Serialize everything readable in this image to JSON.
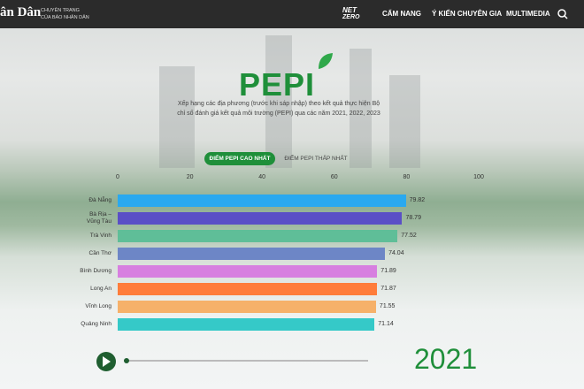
{
  "header": {
    "logo": "ân Dân",
    "tagline": [
      "CHUYÊN TRANG",
      "CỦA BÁO NHÂN DÂN"
    ],
    "netzero": [
      "NET",
      "ZERO"
    ],
    "nav": [
      "CẨM NANG",
      "Ý KIẾN CHUYÊN GIA",
      "MULTIMEDIA"
    ]
  },
  "hero": {
    "title": "PEPI",
    "description": "Xếp hạng các địa phương (trước khi sáp nhập) theo kết quả thực hiện Bộ chỉ số đánh giá kết quả môi trường (PEPI) qua các năm 2021, 2022, 2023",
    "tabs": [
      "ĐIỂM PEPI CAO NHẤT",
      "ĐIỂM PEPI THẤP NHẤT"
    ]
  },
  "chart_data": {
    "type": "bar",
    "orientation": "horizontal",
    "categories": [
      "Đà Nẵng",
      "Bà Rịa – Vũng Tàu",
      "Trà Vinh",
      "Cần Thơ",
      "Bình Dương",
      "Long An",
      "Vĩnh Long",
      "Quảng Ninh"
    ],
    "values": [
      79.82,
      78.79,
      77.52,
      74.04,
      71.89,
      71.87,
      71.55,
      71.14
    ],
    "colors": [
      "#2aa9ef",
      "#5a4fc6",
      "#5fbe98",
      "#6d86c6",
      "#d77fe0",
      "#ff7d3a",
      "#f6b16a",
      "#35c9c8"
    ],
    "xlim": [
      0,
      100
    ],
    "xticks": [
      0,
      20,
      40,
      60,
      80,
      100
    ],
    "grid": false,
    "year": "2021"
  }
}
